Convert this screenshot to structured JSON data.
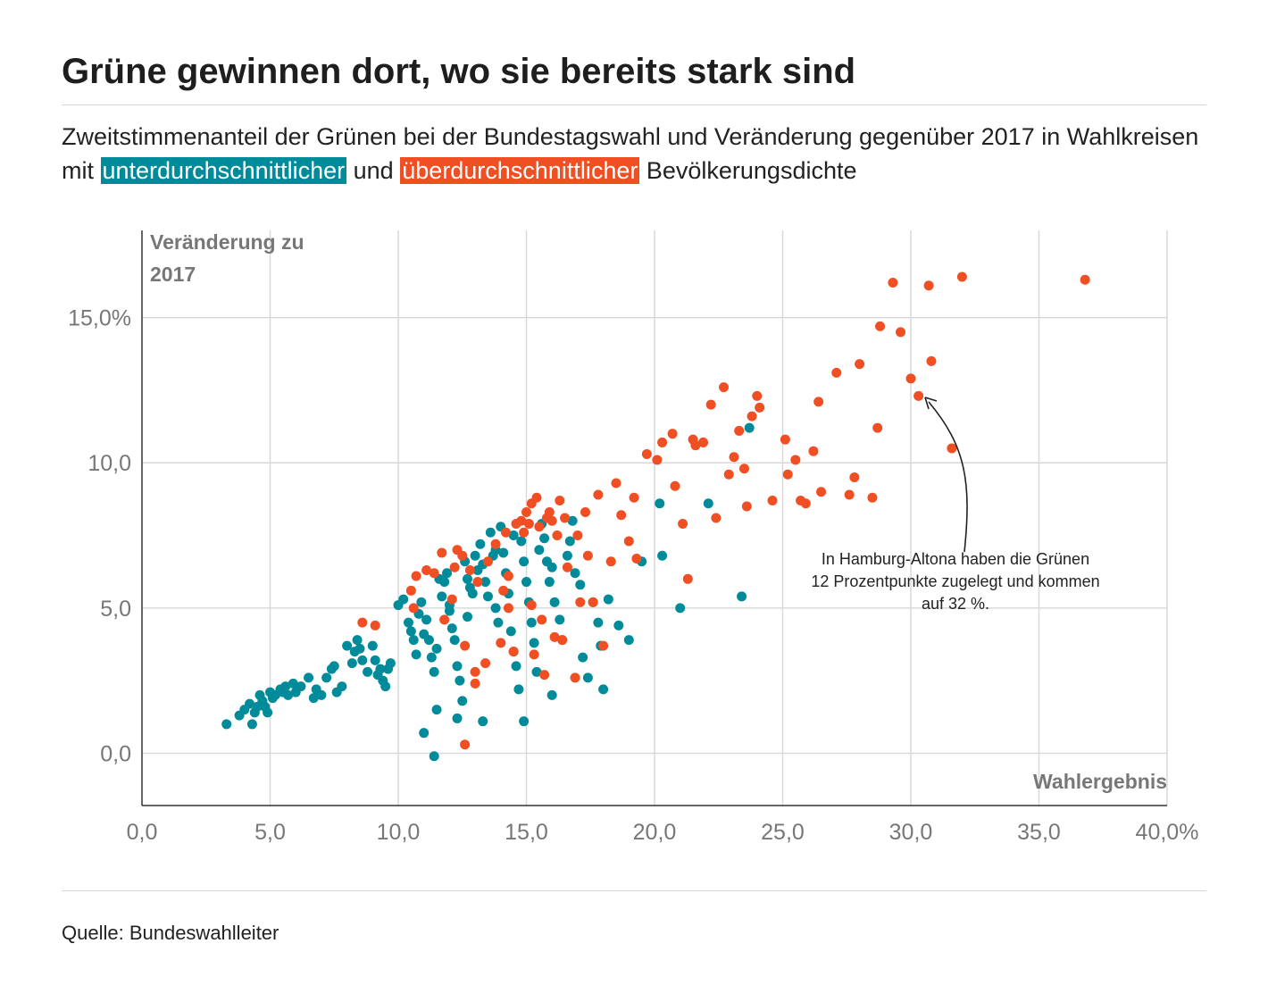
{
  "title": "Grüne gewinnen dort, wo sie bereits stark sind",
  "subtitle": {
    "part1": "Zweitstimmenanteil der Grünen bei der Bundestagswahl und Veränderung gegenüber 2017 in Wahlkreisen mit ",
    "low_density": "unterdurchschnittlicher",
    "part2": " und ",
    "high_density": "überdurchschnittlicher",
    "part3": " Bevölkerungsdichte"
  },
  "colors": {
    "low_density": "#008b9a",
    "high_density": "#f04e23",
    "grid": "#d9d9d9",
    "axis_text": "#777777"
  },
  "annotation": {
    "line1": "In Hamburg-Altona haben die Grünen",
    "line2": "12 Prozentpunkte zugelegt und kommen",
    "line3": "auf 32 %."
  },
  "source": "Quelle: Bundeswahlleiter",
  "chart_data": {
    "type": "scatter",
    "xlabel": "Wahlergebnis",
    "ylabel_line1": "Veränderung zu",
    "ylabel_line2": "2017",
    "xlim": [
      0,
      40
    ],
    "ylim": [
      -1.8,
      18
    ],
    "x_ticks": [
      0,
      5,
      10,
      15,
      20,
      25,
      30,
      35,
      40
    ],
    "x_tick_labels": [
      "0,0",
      "5,0",
      "10,0",
      "15,0",
      "20,0",
      "25,0",
      "30,0",
      "35,0",
      "40,0%"
    ],
    "y_ticks": [
      0,
      5,
      10,
      15
    ],
    "y_tick_labels": [
      "0,0",
      "5,0",
      "10,0",
      "15,0%"
    ],
    "grid": true,
    "series": [
      {
        "name": "unterdurchschnittlicher Bevölkerungsdichte",
        "color": "#008b9a",
        "points": [
          [
            3.3,
            1.0
          ],
          [
            3.8,
            1.3
          ],
          [
            4.0,
            1.5
          ],
          [
            4.2,
            1.7
          ],
          [
            4.3,
            1.0
          ],
          [
            4.4,
            1.4
          ],
          [
            4.5,
            1.6
          ],
          [
            4.6,
            2.0
          ],
          [
            4.7,
            1.8
          ],
          [
            4.8,
            1.6
          ],
          [
            4.9,
            1.4
          ],
          [
            5.0,
            2.1
          ],
          [
            5.1,
            1.9
          ],
          [
            5.2,
            2.0
          ],
          [
            5.4,
            2.2
          ],
          [
            5.5,
            2.1
          ],
          [
            5.6,
            2.3
          ],
          [
            5.7,
            2.0
          ],
          [
            5.9,
            2.4
          ],
          [
            6.0,
            2.1
          ],
          [
            6.2,
            2.3
          ],
          [
            6.5,
            2.6
          ],
          [
            6.7,
            1.9
          ],
          [
            6.8,
            2.2
          ],
          [
            7.0,
            2.0
          ],
          [
            7.2,
            2.6
          ],
          [
            7.4,
            2.9
          ],
          [
            7.5,
            3.0
          ],
          [
            7.6,
            2.1
          ],
          [
            7.8,
            2.3
          ],
          [
            8.0,
            3.7
          ],
          [
            8.2,
            3.1
          ],
          [
            8.3,
            3.5
          ],
          [
            8.4,
            3.9
          ],
          [
            8.5,
            3.6
          ],
          [
            8.6,
            3.2
          ],
          [
            8.8,
            2.8
          ],
          [
            9.0,
            3.7
          ],
          [
            9.1,
            3.2
          ],
          [
            9.2,
            2.7
          ],
          [
            9.3,
            2.9
          ],
          [
            9.4,
            2.5
          ],
          [
            9.5,
            2.3
          ],
          [
            9.6,
            2.9
          ],
          [
            9.7,
            3.1
          ],
          [
            10.0,
            5.1
          ],
          [
            10.2,
            5.3
          ],
          [
            10.4,
            4.5
          ],
          [
            10.5,
            4.2
          ],
          [
            10.6,
            3.9
          ],
          [
            10.7,
            3.4
          ],
          [
            10.8,
            4.8
          ],
          [
            10.9,
            5.2
          ],
          [
            11.0,
            4.1
          ],
          [
            11.1,
            4.6
          ],
          [
            11.2,
            3.9
          ],
          [
            11.3,
            3.3
          ],
          [
            11.4,
            2.8
          ],
          [
            11.5,
            3.6
          ],
          [
            11.6,
            6.0
          ],
          [
            11.7,
            5.4
          ],
          [
            11.8,
            5.9
          ],
          [
            11.9,
            6.2
          ],
          [
            12.0,
            5.1
          ],
          [
            12.1,
            4.3
          ],
          [
            12.2,
            3.9
          ],
          [
            12.3,
            3.0
          ],
          [
            12.4,
            2.5
          ],
          [
            12.5,
            1.8
          ],
          [
            12.6,
            6.6
          ],
          [
            12.7,
            6.0
          ],
          [
            12.8,
            5.7
          ],
          [
            12.9,
            5.5
          ],
          [
            13.0,
            6.8
          ],
          [
            13.1,
            6.3
          ],
          [
            13.2,
            7.2
          ],
          [
            13.3,
            6.5
          ],
          [
            13.4,
            5.9
          ],
          [
            13.5,
            5.4
          ],
          [
            13.6,
            7.6
          ],
          [
            13.7,
            6.8
          ],
          [
            13.8,
            5.0
          ],
          [
            13.9,
            4.5
          ],
          [
            14.0,
            7.8
          ],
          [
            14.1,
            6.9
          ],
          [
            14.2,
            6.2
          ],
          [
            14.3,
            5.5
          ],
          [
            14.4,
            4.2
          ],
          [
            14.5,
            3.5
          ],
          [
            14.6,
            3.0
          ],
          [
            14.7,
            2.2
          ],
          [
            14.8,
            7.3
          ],
          [
            14.9,
            6.6
          ],
          [
            15.0,
            5.9
          ],
          [
            15.1,
            5.2
          ],
          [
            15.2,
            4.5
          ],
          [
            15.3,
            3.8
          ],
          [
            15.4,
            2.8
          ],
          [
            15.6,
            7.9
          ],
          [
            15.7,
            7.4
          ],
          [
            15.8,
            6.6
          ],
          [
            15.9,
            5.9
          ],
          [
            16.0,
            6.4
          ],
          [
            16.1,
            5.2
          ],
          [
            16.3,
            4.6
          ],
          [
            16.4,
            3.9
          ],
          [
            16.6,
            6.8
          ],
          [
            16.7,
            7.3
          ],
          [
            16.8,
            8.0
          ],
          [
            16.9,
            6.2
          ],
          [
            17.1,
            5.8
          ],
          [
            17.2,
            3.3
          ],
          [
            17.4,
            2.6
          ],
          [
            17.6,
            5.2
          ],
          [
            17.8,
            4.5
          ],
          [
            17.9,
            3.7
          ],
          [
            18.0,
            2.2
          ],
          [
            18.2,
            5.3
          ],
          [
            18.6,
            4.4
          ],
          [
            19.0,
            3.9
          ],
          [
            19.5,
            6.6
          ],
          [
            20.2,
            8.6
          ],
          [
            20.3,
            6.8
          ],
          [
            21.0,
            5.0
          ],
          [
            22.1,
            8.6
          ],
          [
            23.4,
            5.4
          ],
          [
            23.7,
            11.2
          ],
          [
            12.3,
            1.2
          ],
          [
            13.3,
            1.1
          ],
          [
            14.9,
            1.1
          ],
          [
            11.0,
            0.7
          ],
          [
            11.4,
            -0.1
          ],
          [
            11.5,
            1.5
          ],
          [
            16.0,
            2.0
          ],
          [
            15.5,
            7.0
          ],
          [
            14.5,
            7.5
          ],
          [
            13.8,
            7.0
          ],
          [
            12.7,
            4.7
          ],
          [
            12.0,
            4.9
          ]
        ]
      },
      {
        "name": "überdurchschnittlicher Bevölkerungsdichte",
        "color": "#f04e23",
        "points": [
          [
            8.6,
            4.5
          ],
          [
            9.1,
            4.4
          ],
          [
            10.5,
            5.6
          ],
          [
            10.6,
            5.0
          ],
          [
            10.7,
            6.1
          ],
          [
            11.1,
            6.3
          ],
          [
            11.4,
            6.2
          ],
          [
            11.7,
            6.9
          ],
          [
            11.8,
            4.6
          ],
          [
            12.2,
            6.4
          ],
          [
            12.3,
            7.0
          ],
          [
            12.5,
            6.8
          ],
          [
            12.6,
            0.3
          ],
          [
            12.8,
            6.3
          ],
          [
            13.0,
            2.8
          ],
          [
            13.0,
            2.4
          ],
          [
            13.4,
            3.1
          ],
          [
            13.5,
            6.6
          ],
          [
            13.8,
            7.2
          ],
          [
            14.0,
            3.8
          ],
          [
            14.1,
            5.6
          ],
          [
            14.2,
            7.6
          ],
          [
            14.3,
            5.0
          ],
          [
            14.5,
            3.5
          ],
          [
            14.6,
            7.9
          ],
          [
            14.8,
            8.0
          ],
          [
            14.9,
            7.6
          ],
          [
            15.0,
            8.3
          ],
          [
            15.1,
            7.9
          ],
          [
            15.2,
            8.6
          ],
          [
            15.3,
            3.4
          ],
          [
            15.4,
            8.8
          ],
          [
            15.5,
            7.8
          ],
          [
            15.6,
            4.6
          ],
          [
            15.7,
            2.7
          ],
          [
            15.8,
            8.1
          ],
          [
            15.9,
            8.3
          ],
          [
            16.0,
            8.0
          ],
          [
            16.1,
            4.0
          ],
          [
            16.2,
            7.5
          ],
          [
            16.3,
            8.7
          ],
          [
            16.4,
            3.9
          ],
          [
            16.6,
            6.4
          ],
          [
            16.9,
            2.6
          ],
          [
            17.1,
            5.2
          ],
          [
            17.3,
            8.3
          ],
          [
            17.4,
            6.8
          ],
          [
            17.6,
            5.2
          ],
          [
            17.8,
            8.9
          ],
          [
            18.0,
            3.7
          ],
          [
            18.3,
            6.6
          ],
          [
            18.5,
            9.3
          ],
          [
            18.7,
            8.2
          ],
          [
            19.0,
            7.3
          ],
          [
            19.3,
            6.7
          ],
          [
            19.7,
            10.3
          ],
          [
            20.1,
            10.1
          ],
          [
            20.3,
            10.7
          ],
          [
            20.7,
            11.0
          ],
          [
            21.1,
            7.9
          ],
          [
            21.3,
            6.0
          ],
          [
            21.5,
            10.8
          ],
          [
            21.9,
            10.7
          ],
          [
            22.2,
            12.0
          ],
          [
            22.4,
            8.1
          ],
          [
            22.7,
            12.6
          ],
          [
            22.9,
            9.6
          ],
          [
            23.1,
            10.2
          ],
          [
            23.3,
            11.1
          ],
          [
            23.5,
            9.8
          ],
          [
            23.6,
            8.5
          ],
          [
            23.8,
            11.6
          ],
          [
            24.0,
            12.3
          ],
          [
            24.1,
            11.9
          ],
          [
            24.6,
            8.7
          ],
          [
            25.1,
            10.8
          ],
          [
            25.2,
            9.6
          ],
          [
            25.5,
            10.1
          ],
          [
            25.7,
            8.7
          ],
          [
            25.9,
            8.6
          ],
          [
            26.2,
            10.4
          ],
          [
            26.4,
            12.1
          ],
          [
            26.5,
            9.0
          ],
          [
            27.1,
            13.1
          ],
          [
            27.6,
            8.9
          ],
          [
            27.8,
            9.5
          ],
          [
            28.0,
            13.4
          ],
          [
            28.5,
            8.8
          ],
          [
            28.7,
            11.2
          ],
          [
            28.8,
            14.7
          ],
          [
            29.3,
            16.2
          ],
          [
            29.6,
            14.5
          ],
          [
            30.0,
            12.9
          ],
          [
            30.3,
            12.3
          ],
          [
            30.7,
            16.1
          ],
          [
            30.8,
            13.5
          ],
          [
            31.6,
            10.5
          ],
          [
            32.0,
            16.4
          ],
          [
            36.8,
            16.3
          ],
          [
            21.6,
            10.6
          ],
          [
            20.8,
            9.2
          ],
          [
            19.2,
            8.8
          ],
          [
            17.0,
            7.5
          ],
          [
            16.5,
            8.1
          ],
          [
            14.3,
            6.1
          ],
          [
            13.1,
            5.9
          ],
          [
            12.1,
            5.3
          ],
          [
            12.6,
            3.7
          ],
          [
            15.2,
            5.1
          ]
        ]
      }
    ],
    "highlight": {
      "label": "Hamburg-Altona",
      "x": 30.3,
      "y": 12.3
    }
  }
}
